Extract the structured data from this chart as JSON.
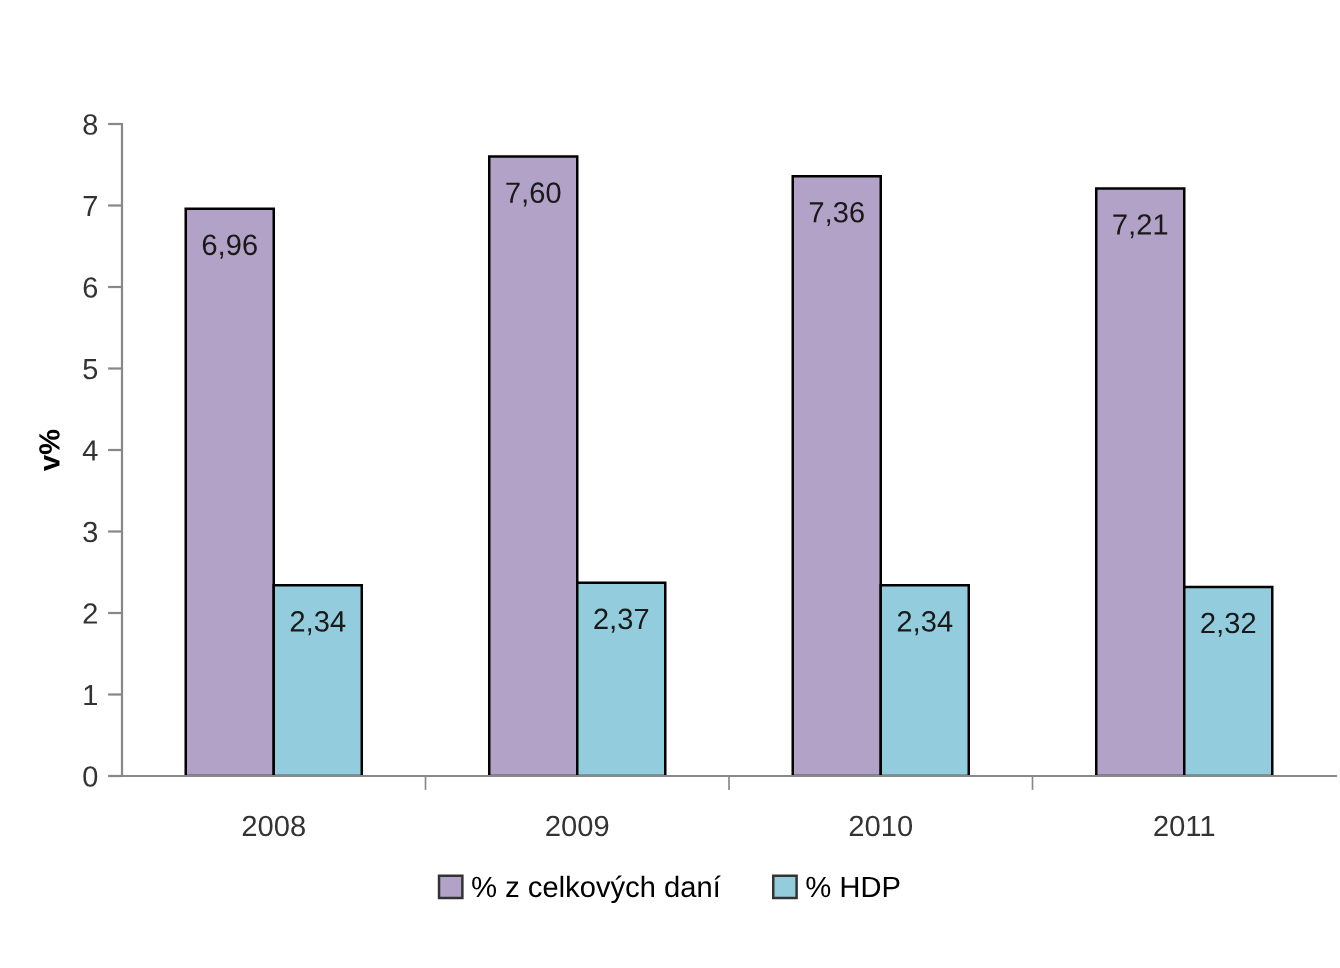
{
  "chart_data": {
    "type": "bar",
    "ylabel": "v%",
    "categories": [
      "2008",
      "2009",
      "2010",
      "2011"
    ],
    "series": [
      {
        "name": "% z celkových daní",
        "color": "#b3a2c7",
        "values": [
          6.96,
          7.6,
          7.36,
          7.21
        ],
        "value_labels": [
          "6,96",
          "7,60",
          "7,36",
          "7,21"
        ]
      },
      {
        "name": "% HDP",
        "color": "#93cddd",
        "values": [
          2.34,
          2.37,
          2.34,
          2.32
        ],
        "value_labels": [
          "2,34",
          "2,37",
          "2,34",
          "2,32"
        ]
      }
    ],
    "ylim": [
      0,
      8
    ],
    "yticks": [
      0,
      1,
      2,
      3,
      4,
      5,
      6,
      7,
      8
    ],
    "grid": false,
    "legend": "bottom"
  }
}
